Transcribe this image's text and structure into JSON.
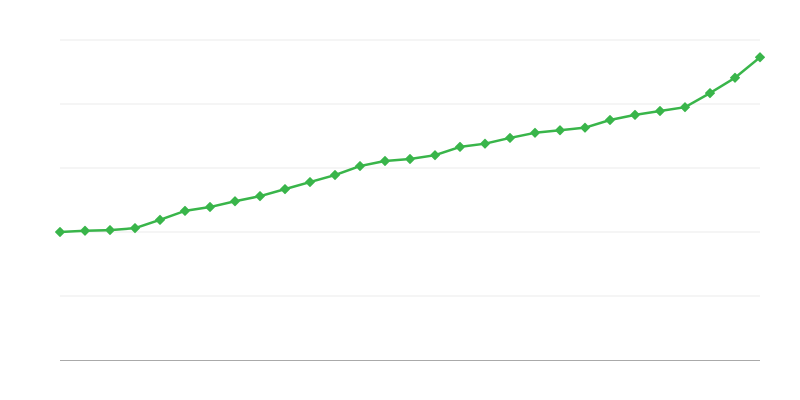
{
  "chart_data": {
    "type": "line",
    "title": "",
    "xlabel": "",
    "ylabel": "",
    "x": [
      1,
      2,
      3,
      4,
      5,
      6,
      7,
      8,
      9,
      10,
      11,
      12,
      13,
      14,
      15,
      16,
      17,
      18,
      19,
      20,
      21,
      22,
      23,
      24,
      25,
      26,
      27,
      28,
      29
    ],
    "series": [
      {
        "values": [
          2.0,
          2.02,
          2.03,
          2.06,
          2.19,
          2.33,
          2.39,
          2.48,
          2.56,
          2.67,
          2.78,
          2.89,
          3.03,
          3.11,
          3.14,
          3.2,
          3.33,
          3.38,
          3.47,
          3.55,
          3.59,
          3.63,
          3.75,
          3.83,
          3.89,
          3.95,
          4.17,
          4.41,
          4.73
        ],
        "color": "#39b54a",
        "marker": "diamond"
      }
    ],
    "ylim": [
      0,
      5
    ],
    "y_gridlines": [
      1,
      2,
      3,
      4,
      5
    ],
    "grid": true,
    "gridline_color": "#ebebeb",
    "axis_color": "#aaaaaa",
    "legend": "none"
  }
}
